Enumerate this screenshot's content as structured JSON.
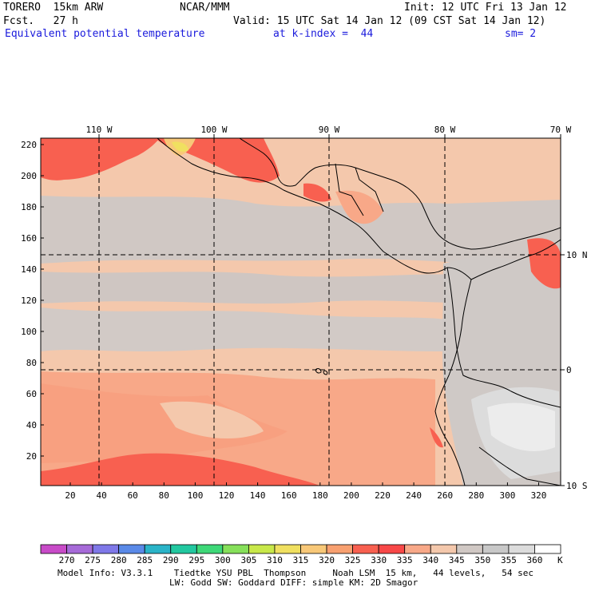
{
  "header": {
    "model": "TORERO  15km ARW",
    "center": "NCAR/MMM",
    "init": "Init: 12 UTC Fri 13 Jan 12",
    "fcst": "Fcst.   27 h",
    "valid": "Valid: 15 UTC Sat 14 Jan 12 (09 CST Sat 14 Jan 12)",
    "field": "Equivalent potential temperature",
    "level": "at k-index =  44",
    "smooth": "sm= 2"
  },
  "map": {
    "lon_labels": [
      "110 W",
      "100 W",
      "90 W",
      "80 W",
      "70 W"
    ],
    "lat_labels": [
      "10 N",
      "0",
      "10 S"
    ],
    "y_ticks": [
      "220",
      "200",
      "180",
      "160",
      "140",
      "120",
      "100",
      "80",
      "60",
      "40",
      "20"
    ],
    "x_ticks": [
      "20",
      "40",
      "60",
      "80",
      "100",
      "120",
      "140",
      "160",
      "180",
      "200",
      "220",
      "240",
      "260",
      "280",
      "300",
      "320"
    ]
  },
  "colorbar": {
    "labels": [
      "270",
      "275",
      "280",
      "285",
      "290",
      "295",
      "300",
      "305",
      "310",
      "315",
      "320",
      "325",
      "330",
      "335",
      "340",
      "345",
      "350",
      "355",
      "360"
    ],
    "unit": "K",
    "colors": [
      "#c84bc8",
      "#a66ad8",
      "#7f78e8",
      "#5a8ae8",
      "#2ab4c8",
      "#22c8a0",
      "#3ed878",
      "#86e05a",
      "#c8e84a",
      "#f0e060",
      "#f8c878",
      "#f8a070",
      "#f86050",
      "#f84848",
      "#f8a888",
      "#f4c8ac",
      "#d0c8c4",
      "#c8c8c8",
      "#dcdcdc",
      "#ffffff"
    ]
  },
  "footer": {
    "line1": "Model Info: V3.3.1    Tiedtke YSU PBL  Thompson     Noah LSM  15 km,   44 levels,   54 sec",
    "line2": "LW: Godd SW: Goddard DIFF: simple KM: 2D Smagor"
  }
}
